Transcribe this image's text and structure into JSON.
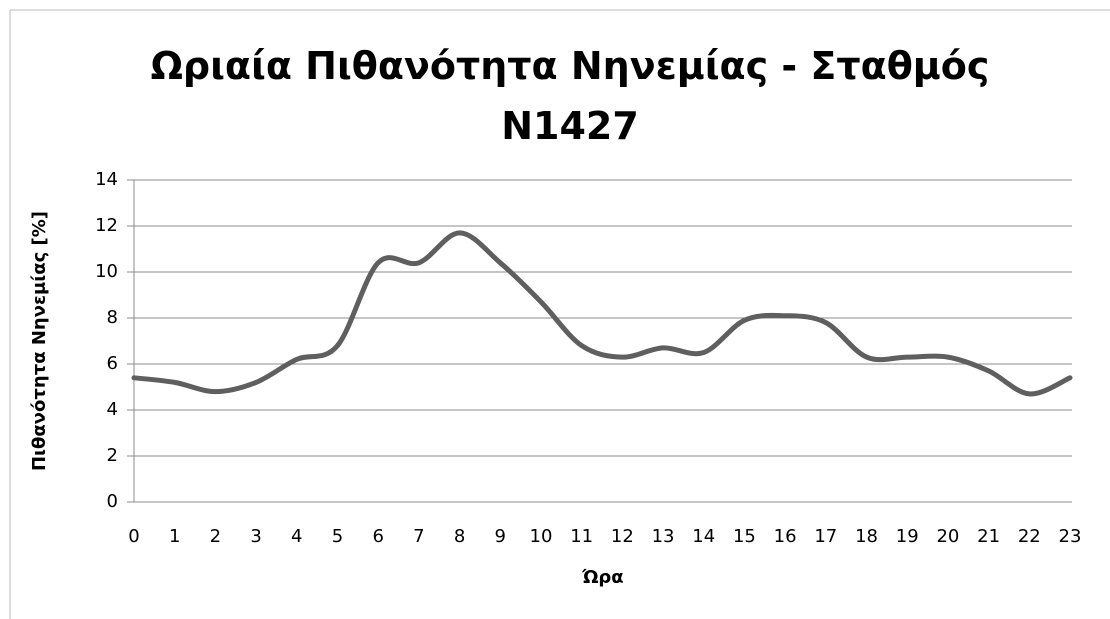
{
  "chart_data": {
    "type": "line",
    "title": "Ωριαία Πιθανότητα Νηνεμίας - Σταθμός N1427",
    "x_label": "Ώρα",
    "y_label": "Πιθανότητα Νηνεμίας [%]",
    "categories": [
      "0",
      "1",
      "2",
      "3",
      "4",
      "5",
      "6",
      "7",
      "8",
      "9",
      "10",
      "11",
      "12",
      "13",
      "14",
      "15",
      "16",
      "17",
      "18",
      "19",
      "20",
      "21",
      "22",
      "23"
    ],
    "series": [
      {
        "color": "#5f5f5f",
        "values": [
          5.4,
          5.2,
          4.8,
          5.2,
          6.2,
          6.8,
          10.4,
          10.4,
          11.7,
          10.4,
          8.7,
          6.8,
          6.3,
          6.7,
          6.5,
          7.9,
          8.1,
          7.8,
          6.3,
          6.3,
          6.3,
          5.7,
          4.7,
          5.4
        ]
      }
    ],
    "ylim": [
      0,
      14
    ],
    "yticks": [
      0,
      2,
      4,
      6,
      8,
      10,
      12,
      14
    ],
    "grid": true,
    "smooth": true
  }
}
